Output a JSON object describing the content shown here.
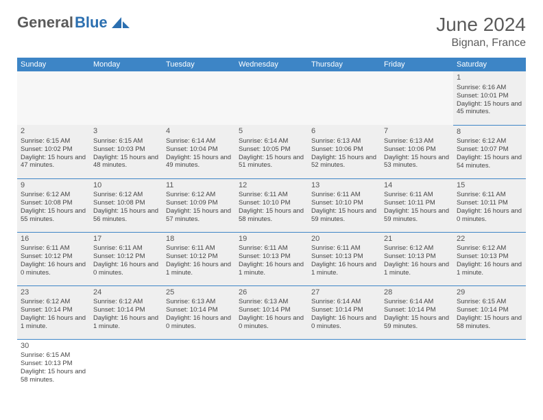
{
  "brand": {
    "part1": "General",
    "part2": "Blue"
  },
  "title": "June 2024",
  "location": "Bignan, France",
  "header_color": "#3d85c6",
  "cell_bg": "#efefef",
  "border_color": "#3d85c6",
  "weekdays": [
    "Sunday",
    "Monday",
    "Tuesday",
    "Wednesday",
    "Thursday",
    "Friday",
    "Saturday"
  ],
  "weeks": [
    [
      null,
      null,
      null,
      null,
      null,
      null,
      {
        "d": "1",
        "sr": "Sunrise: 6:16 AM",
        "ss": "Sunset: 10:01 PM",
        "dl": "Daylight: 15 hours and 45 minutes."
      }
    ],
    [
      {
        "d": "2",
        "sr": "Sunrise: 6:15 AM",
        "ss": "Sunset: 10:02 PM",
        "dl": "Daylight: 15 hours and 47 minutes."
      },
      {
        "d": "3",
        "sr": "Sunrise: 6:15 AM",
        "ss": "Sunset: 10:03 PM",
        "dl": "Daylight: 15 hours and 48 minutes."
      },
      {
        "d": "4",
        "sr": "Sunrise: 6:14 AM",
        "ss": "Sunset: 10:04 PM",
        "dl": "Daylight: 15 hours and 49 minutes."
      },
      {
        "d": "5",
        "sr": "Sunrise: 6:14 AM",
        "ss": "Sunset: 10:05 PM",
        "dl": "Daylight: 15 hours and 51 minutes."
      },
      {
        "d": "6",
        "sr": "Sunrise: 6:13 AM",
        "ss": "Sunset: 10:06 PM",
        "dl": "Daylight: 15 hours and 52 minutes."
      },
      {
        "d": "7",
        "sr": "Sunrise: 6:13 AM",
        "ss": "Sunset: 10:06 PM",
        "dl": "Daylight: 15 hours and 53 minutes."
      },
      {
        "d": "8",
        "sr": "Sunrise: 6:12 AM",
        "ss": "Sunset: 10:07 PM",
        "dl": "Daylight: 15 hours and 54 minutes."
      }
    ],
    [
      {
        "d": "9",
        "sr": "Sunrise: 6:12 AM",
        "ss": "Sunset: 10:08 PM",
        "dl": "Daylight: 15 hours and 55 minutes."
      },
      {
        "d": "10",
        "sr": "Sunrise: 6:12 AM",
        "ss": "Sunset: 10:08 PM",
        "dl": "Daylight: 15 hours and 56 minutes."
      },
      {
        "d": "11",
        "sr": "Sunrise: 6:12 AM",
        "ss": "Sunset: 10:09 PM",
        "dl": "Daylight: 15 hours and 57 minutes."
      },
      {
        "d": "12",
        "sr": "Sunrise: 6:11 AM",
        "ss": "Sunset: 10:10 PM",
        "dl": "Daylight: 15 hours and 58 minutes."
      },
      {
        "d": "13",
        "sr": "Sunrise: 6:11 AM",
        "ss": "Sunset: 10:10 PM",
        "dl": "Daylight: 15 hours and 59 minutes."
      },
      {
        "d": "14",
        "sr": "Sunrise: 6:11 AM",
        "ss": "Sunset: 10:11 PM",
        "dl": "Daylight: 15 hours and 59 minutes."
      },
      {
        "d": "15",
        "sr": "Sunrise: 6:11 AM",
        "ss": "Sunset: 10:11 PM",
        "dl": "Daylight: 16 hours and 0 minutes."
      }
    ],
    [
      {
        "d": "16",
        "sr": "Sunrise: 6:11 AM",
        "ss": "Sunset: 10:12 PM",
        "dl": "Daylight: 16 hours and 0 minutes."
      },
      {
        "d": "17",
        "sr": "Sunrise: 6:11 AM",
        "ss": "Sunset: 10:12 PM",
        "dl": "Daylight: 16 hours and 0 minutes."
      },
      {
        "d": "18",
        "sr": "Sunrise: 6:11 AM",
        "ss": "Sunset: 10:12 PM",
        "dl": "Daylight: 16 hours and 1 minute."
      },
      {
        "d": "19",
        "sr": "Sunrise: 6:11 AM",
        "ss": "Sunset: 10:13 PM",
        "dl": "Daylight: 16 hours and 1 minute."
      },
      {
        "d": "20",
        "sr": "Sunrise: 6:11 AM",
        "ss": "Sunset: 10:13 PM",
        "dl": "Daylight: 16 hours and 1 minute."
      },
      {
        "d": "21",
        "sr": "Sunrise: 6:12 AM",
        "ss": "Sunset: 10:13 PM",
        "dl": "Daylight: 16 hours and 1 minute."
      },
      {
        "d": "22",
        "sr": "Sunrise: 6:12 AM",
        "ss": "Sunset: 10:13 PM",
        "dl": "Daylight: 16 hours and 1 minute."
      }
    ],
    [
      {
        "d": "23",
        "sr": "Sunrise: 6:12 AM",
        "ss": "Sunset: 10:14 PM",
        "dl": "Daylight: 16 hours and 1 minute."
      },
      {
        "d": "24",
        "sr": "Sunrise: 6:12 AM",
        "ss": "Sunset: 10:14 PM",
        "dl": "Daylight: 16 hours and 1 minute."
      },
      {
        "d": "25",
        "sr": "Sunrise: 6:13 AM",
        "ss": "Sunset: 10:14 PM",
        "dl": "Daylight: 16 hours and 0 minutes."
      },
      {
        "d": "26",
        "sr": "Sunrise: 6:13 AM",
        "ss": "Sunset: 10:14 PM",
        "dl": "Daylight: 16 hours and 0 minutes."
      },
      {
        "d": "27",
        "sr": "Sunrise: 6:14 AM",
        "ss": "Sunset: 10:14 PM",
        "dl": "Daylight: 16 hours and 0 minutes."
      },
      {
        "d": "28",
        "sr": "Sunrise: 6:14 AM",
        "ss": "Sunset: 10:14 PM",
        "dl": "Daylight: 15 hours and 59 minutes."
      },
      {
        "d": "29",
        "sr": "Sunrise: 6:15 AM",
        "ss": "Sunset: 10:14 PM",
        "dl": "Daylight: 15 hours and 58 minutes."
      }
    ],
    [
      {
        "d": "30",
        "sr": "Sunrise: 6:15 AM",
        "ss": "Sunset: 10:13 PM",
        "dl": "Daylight: 15 hours and 58 minutes."
      },
      null,
      null,
      null,
      null,
      null,
      null
    ]
  ]
}
